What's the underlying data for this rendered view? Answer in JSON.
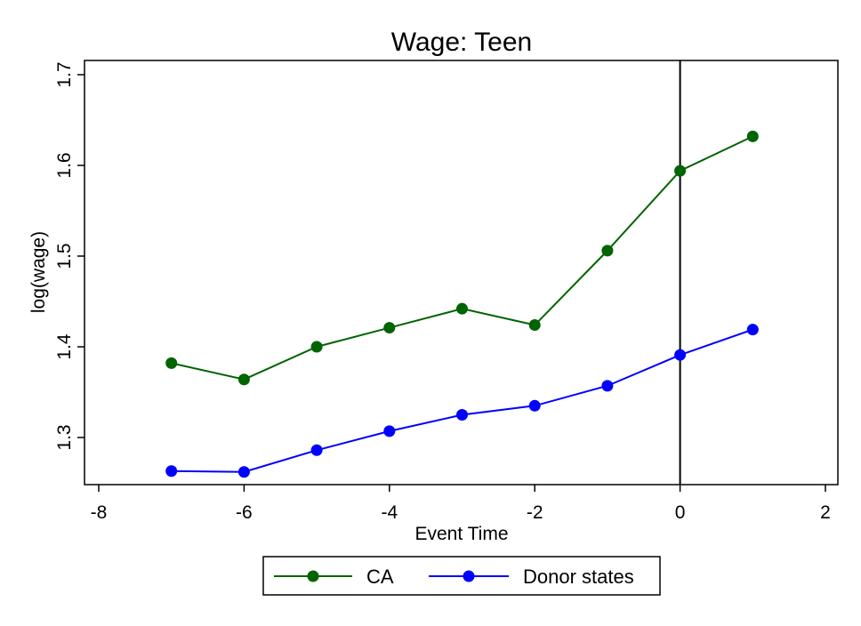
{
  "chart_data": {
    "type": "line",
    "title": "Wage: Teen",
    "xlabel": "Event Time",
    "ylabel": "log(wage)",
    "xlim": [
      -8,
      2
    ],
    "ylim": [
      1.25,
      1.71
    ],
    "xticks": [
      "-8",
      "-6",
      "-4",
      "-2",
      "0",
      "2"
    ],
    "xtick_values": [
      -8,
      -6,
      -4,
      -2,
      0,
      2
    ],
    "yticks": [
      "1.3",
      "1.4",
      "1.5",
      "1.6",
      "1.7"
    ],
    "ytick_values": [
      1.3,
      1.4,
      1.5,
      1.6,
      1.7
    ],
    "grid": false,
    "vline_x": 0,
    "legend_position": "bottom",
    "series": [
      {
        "name": "CA",
        "color": "#006400",
        "x": [
          -7,
          -6,
          -5,
          -4,
          -3,
          -2,
          -1,
          0,
          1
        ],
        "values": [
          1.382,
          1.364,
          1.4,
          1.421,
          1.442,
          1.424,
          1.506,
          1.594,
          1.632
        ]
      },
      {
        "name": "Donor states",
        "color": "#0000ff",
        "x": [
          -7,
          -6,
          -5,
          -4,
          -3,
          -2,
          -1,
          0,
          1
        ],
        "values": [
          1.263,
          1.262,
          1.286,
          1.307,
          1.325,
          1.335,
          1.357,
          1.391,
          1.419
        ]
      }
    ]
  }
}
